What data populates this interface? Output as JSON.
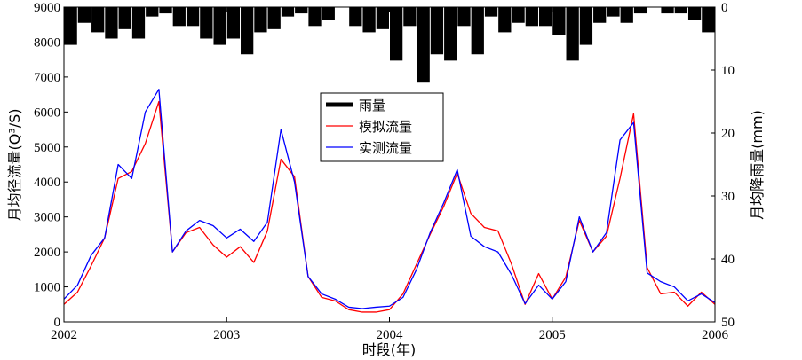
{
  "chart_data": {
    "type": "line",
    "xlabel": "时段(年)",
    "ylabel_left": "月均径流量(Q³/S)",
    "ylabel_right": "月均降雨量(mm)",
    "xlim": [
      2002,
      2006
    ],
    "xticks": [
      "2002",
      "2003",
      "2004",
      "2005",
      "2006"
    ],
    "ylim_left": [
      0,
      9000
    ],
    "yticks_left": [
      "0",
      "1000",
      "2000",
      "3000",
      "4000",
      "5000",
      "6000",
      "7000",
      "8000",
      "9000"
    ],
    "ylim_right_inverted": [
      0,
      50
    ],
    "yticks_right": [
      "0",
      "10",
      "20",
      "30",
      "40",
      "50"
    ],
    "legend_position": "center",
    "series": [
      {
        "name": "雨量",
        "kind": "bar",
        "color": "#000000",
        "values": [
          6.0,
          2.5,
          4.0,
          5.0,
          3.5,
          5.0,
          1.5,
          1.0,
          3.0,
          3.0,
          5.0,
          6.0,
          5.0,
          7.5,
          4.0,
          3.5,
          1.5,
          1.0,
          3.0,
          2.0,
          0.0,
          3.0,
          4.0,
          3.5,
          8.5,
          3.0,
          12.0,
          7.5,
          8.5,
          3.0,
          7.5,
          1.5,
          4.0,
          2.5,
          3.0,
          3.0,
          4.5,
          8.5,
          6.0,
          2.5,
          1.5,
          2.5,
          1.0,
          0.0,
          1.0,
          1.0,
          2.0,
          4.0
        ]
      },
      {
        "name": "模拟流量",
        "kind": "line",
        "color": "#ff0000",
        "values": [
          500,
          850,
          1600,
          2400,
          4100,
          4300,
          5100,
          6300,
          2000,
          2550,
          2700,
          2200,
          1850,
          2150,
          1700,
          2600,
          4650,
          4150,
          1300,
          700,
          600,
          350,
          280,
          280,
          350,
          800,
          1650,
          2500,
          3300,
          4250,
          3100,
          2700,
          2600,
          1650,
          500,
          1380,
          650,
          1280,
          2900,
          2000,
          2450,
          4100,
          5950,
          1550,
          800,
          850,
          450,
          850,
          500
        ]
      },
      {
        "name": "实测流量",
        "kind": "line",
        "color": "#0000ff",
        "values": [
          650,
          1050,
          1900,
          2400,
          4500,
          4100,
          6000,
          6650,
          2000,
          2600,
          2900,
          2750,
          2400,
          2650,
          2300,
          2850,
          5500,
          4000,
          1300,
          800,
          650,
          420,
          380,
          420,
          450,
          700,
          1500,
          2550,
          3400,
          4350,
          2450,
          2150,
          2000,
          1350,
          520,
          1050,
          650,
          1150,
          3000,
          2000,
          2550,
          5200,
          5700,
          1400,
          1150,
          1000,
          600,
          800,
          550
        ]
      }
    ]
  }
}
